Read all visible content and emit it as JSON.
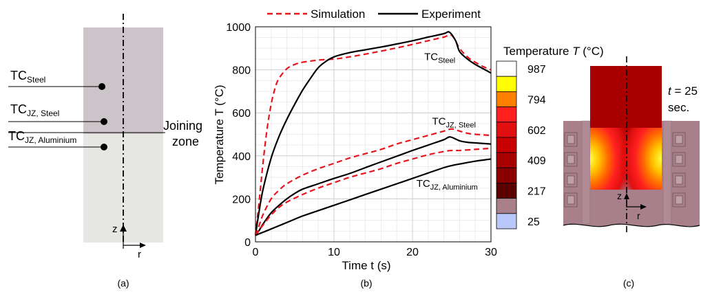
{
  "panel_a": {
    "tc_steel": {
      "base": "TC",
      "sub": "Steel"
    },
    "tc_jz_steel": {
      "base": "TC",
      "sub": "JZ, Steel"
    },
    "tc_jz_aluminium": {
      "base": "TC",
      "sub": "JZ, Aluminium"
    },
    "joining_zone_line1": "Joining",
    "joining_zone_line2": "zone",
    "axis_z": "z",
    "axis_r": "r",
    "caption": "(a)",
    "colors": {
      "steel": "#cbc4c8",
      "aluminium": "#e6e6e3"
    }
  },
  "panel_c": {
    "legend_title": "Temperature ",
    "legend_title_var": "T",
    "legend_title_unit": " (°C)",
    "legend_labels": [
      "987",
      "794",
      "602",
      "409",
      "217",
      "25"
    ],
    "legend_colors": [
      "#ffffff",
      "#ffff00",
      "#ff8000",
      "#ff2020",
      "#e01010",
      "#c80000",
      "#a80000",
      "#8a0000",
      "#5a0000",
      "#a8808c",
      "#b8c8f8"
    ],
    "time_var": "t",
    "time_line1": " = 25",
    "time_line2": "sec.",
    "axis_z": "z",
    "axis_r": "r",
    "caption": "(c)"
  },
  "chart_data": {
    "type": "line",
    "xlabel": "Time t (s)",
    "ylabel": "Temperature T (°C)",
    "xlim": [
      0,
      30
    ],
    "ylim": [
      0,
      1000
    ],
    "xticks": [
      0,
      10,
      20,
      30
    ],
    "yticks": [
      0,
      200,
      400,
      600,
      800,
      1000
    ],
    "grid": true,
    "legend_position": "top",
    "legend": [
      {
        "label": "Simulation",
        "style": "dashed",
        "color": "#e8141c"
      },
      {
        "label": "Experiment",
        "style": "solid",
        "color": "#000000"
      }
    ],
    "annotations": [
      {
        "base": "TC",
        "sub": "Steel",
        "x": 21.5,
        "y": 845
      },
      {
        "base": "TC",
        "sub": "JZ, Steel",
        "x": 22.5,
        "y": 545
      },
      {
        "base": "TC",
        "sub": "JZ, Aluminium",
        "x": 20.5,
        "y": 255
      }
    ],
    "caption": "(b)",
    "series": [
      {
        "id": "tc_steel",
        "kind": "Simulation",
        "x": [
          0,
          0.5,
          1,
          1.5,
          2,
          2.5,
          3,
          4,
          5,
          6,
          8,
          10,
          12,
          14,
          16,
          18,
          20,
          22,
          24,
          25,
          26,
          27,
          28,
          29,
          30
        ],
        "y": [
          30,
          200,
          380,
          530,
          640,
          715,
          760,
          805,
          825,
          835,
          845,
          850,
          860,
          873,
          887,
          902,
          918,
          935,
          952,
          960,
          900,
          860,
          835,
          815,
          800
        ]
      },
      {
        "id": "tc_steel",
        "kind": "Experiment",
        "x": [
          0,
          0.5,
          1,
          2,
          3,
          4,
          5,
          6,
          7,
          8,
          9,
          10,
          12,
          14,
          16,
          18,
          20,
          22,
          24,
          24.7,
          25.5,
          26,
          27,
          28,
          29,
          30
        ],
        "y": [
          30,
          150,
          250,
          390,
          490,
          570,
          640,
          705,
          760,
          810,
          840,
          860,
          880,
          893,
          906,
          920,
          935,
          952,
          968,
          975,
          935,
          885,
          850,
          825,
          805,
          785
        ]
      },
      {
        "id": "tc_jz_steel",
        "kind": "Simulation",
        "x": [
          0,
          0.5,
          1,
          2,
          3,
          4,
          6,
          8,
          10,
          12,
          14,
          16,
          18,
          20,
          22,
          24,
          25,
          26,
          27,
          28,
          30
        ],
        "y": [
          30,
          80,
          130,
          200,
          240,
          270,
          310,
          340,
          365,
          390,
          410,
          430,
          455,
          475,
          495,
          515,
          525,
          515,
          505,
          500,
          495
        ]
      },
      {
        "id": "tc_jz_steel",
        "kind": "Experiment",
        "x": [
          0,
          0.5,
          1,
          2,
          3,
          4,
          5,
          6,
          8,
          10,
          12,
          14,
          16,
          18,
          20,
          22,
          24,
          24.8,
          26,
          27,
          28,
          30
        ],
        "y": [
          30,
          55,
          85,
          135,
          170,
          200,
          225,
          245,
          270,
          295,
          318,
          345,
          372,
          398,
          425,
          450,
          475,
          488,
          470,
          463,
          460,
          455
        ]
      },
      {
        "id": "tc_jz_aluminium",
        "kind": "Simulation",
        "x": [
          0,
          0.5,
          1,
          2,
          3,
          4,
          6,
          8,
          10,
          12,
          14,
          16,
          18,
          20,
          22,
          24,
          25,
          26,
          28,
          30
        ],
        "y": [
          30,
          55,
          80,
          125,
          160,
          185,
          220,
          250,
          275,
          300,
          320,
          340,
          365,
          385,
          405,
          420,
          425,
          425,
          430,
          435
        ]
      },
      {
        "id": "tc_jz_aluminium",
        "kind": "Experiment",
        "x": [
          0,
          0.5,
          1,
          2,
          3,
          4,
          6,
          8,
          10,
          12,
          14,
          16,
          18,
          20,
          22,
          24,
          25,
          26,
          28,
          30
        ],
        "y": [
          30,
          38,
          45,
          60,
          75,
          90,
          120,
          145,
          170,
          195,
          220,
          245,
          270,
          295,
          320,
          345,
          355,
          362,
          375,
          385
        ]
      }
    ]
  }
}
